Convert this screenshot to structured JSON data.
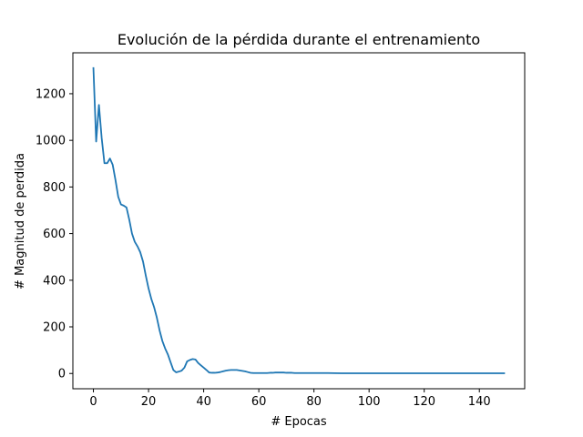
{
  "chart_data": {
    "type": "line",
    "title": "Evolución de la pérdida durante el entrenamiento",
    "xlabel": "# Epocas",
    "ylabel": "# Magnitud de perdida",
    "xlim": [
      -7.45,
      156.45
    ],
    "ylim": [
      -65.5,
      1375.5
    ],
    "xticks": [
      0,
      20,
      40,
      60,
      80,
      100,
      120,
      140
    ],
    "yticks": [
      0,
      200,
      400,
      600,
      800,
      1000,
      1200
    ],
    "grid": false,
    "line_color": "#1f77b4",
    "series": [
      {
        "x": [
          0,
          1,
          2,
          3,
          4,
          5,
          6,
          7,
          8,
          9,
          10,
          11,
          12,
          13,
          14,
          15,
          16,
          17,
          18,
          19,
          20,
          21,
          22,
          23,
          24,
          25,
          26,
          27,
          28,
          29,
          30,
          31,
          32,
          33,
          34,
          35,
          36,
          37,
          38,
          39,
          40,
          41,
          42,
          43,
          44,
          45,
          46,
          47,
          48,
          49,
          50,
          51,
          52,
          53,
          54,
          55,
          56,
          57,
          58,
          59,
          60,
          61,
          62,
          63,
          64,
          65,
          66,
          67,
          68,
          69,
          70,
          71,
          72,
          73,
          74,
          75,
          76,
          77,
          78,
          79,
          80,
          85,
          90,
          95,
          100,
          105,
          110,
          115,
          120,
          125,
          130,
          135,
          140,
          145,
          149
        ],
        "values": [
          1310,
          995,
          1152,
          1010,
          902,
          902,
          922,
          895,
          830,
          758,
          725,
          720,
          712,
          660,
          600,
          565,
          545,
          520,
          480,
          420,
          365,
          320,
          285,
          240,
          185,
          140,
          108,
          82,
          48,
          15,
          5,
          8,
          12,
          25,
          52,
          58,
          62,
          60,
          45,
          35,
          25,
          15,
          4,
          3,
          3,
          4,
          6,
          9,
          12,
          14,
          15,
          15,
          15,
          13,
          11,
          9,
          6,
          3,
          2,
          2,
          2,
          2,
          2,
          2,
          3,
          3,
          4,
          4,
          4,
          4,
          3,
          3,
          3,
          2,
          2,
          2,
          2,
          2,
          2,
          2,
          2,
          2,
          1,
          1,
          1,
          1,
          1,
          1,
          1,
          1,
          1,
          1,
          1,
          1,
          1
        ]
      }
    ]
  }
}
